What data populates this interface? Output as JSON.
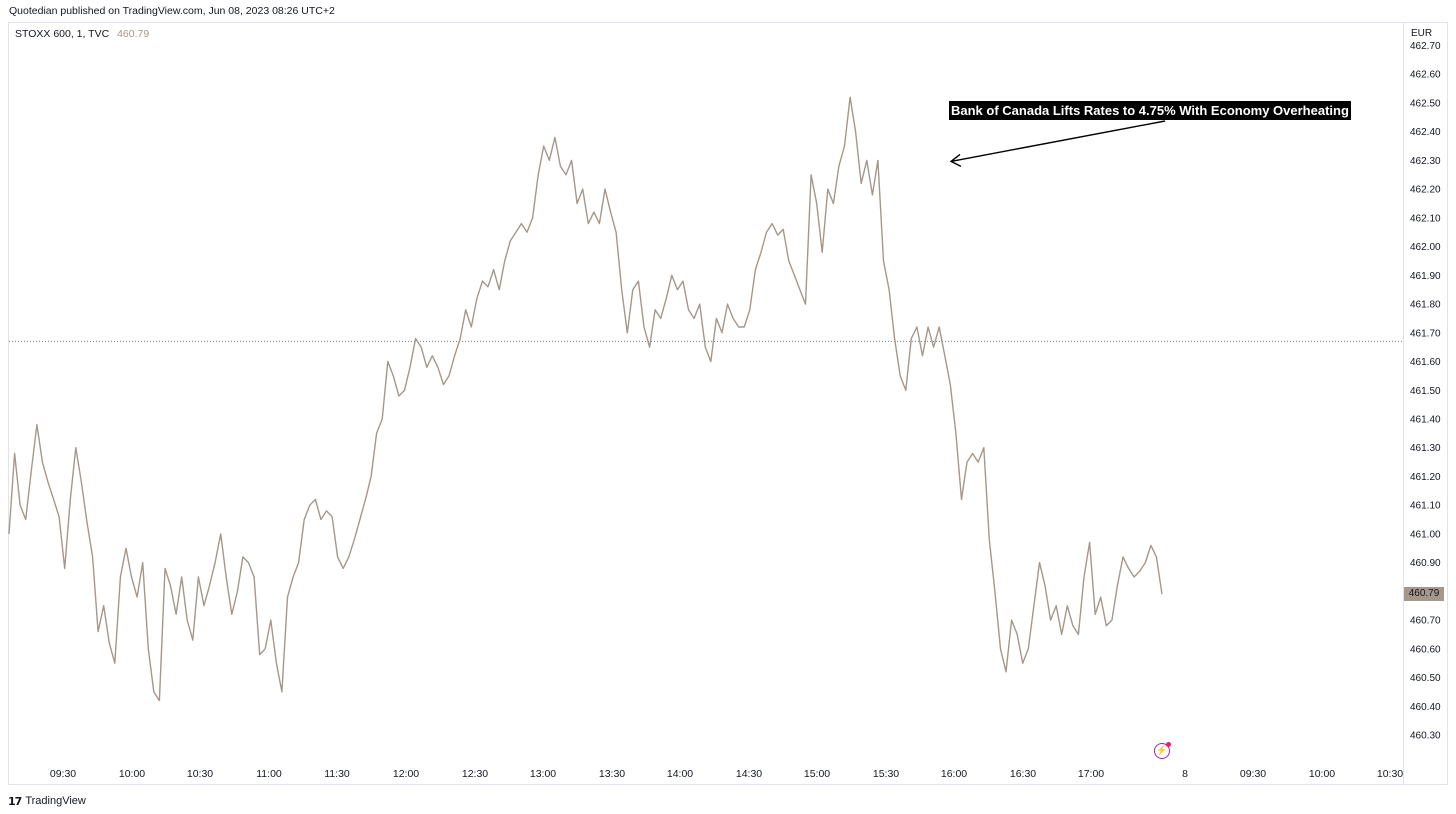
{
  "header": {
    "published": "Quotedian published on TradingView.com, Jun 08, 2023 08:26 UTC+2"
  },
  "legend": {
    "symbol": "STOXX 600, 1, TVC",
    "last_value": "460.79"
  },
  "price_scale": {
    "currency": "EUR",
    "last_price_label": "460.79"
  },
  "annotation": {
    "text": "Bank of Canada Lifts Rates to 4.75% With Economy Overheating",
    "points_to": {
      "time": "15:58",
      "price": 462.3
    }
  },
  "footer": {
    "logo": "17",
    "brand": "TradingView"
  },
  "icons": [
    "lightning-icon",
    "tradingview-logo-icon"
  ],
  "colors": {
    "line": "#a5978a",
    "grid": "#e0e3eb",
    "annotation_bg": "#000000",
    "flash_icon": "#9c27b0"
  },
  "chart_data": {
    "type": "line",
    "series": [
      {
        "values": [
          [
            0,
            461.0
          ],
          [
            1,
            461.28
          ],
          [
            2,
            461.1
          ],
          [
            3,
            461.05
          ],
          [
            4,
            461.22
          ],
          [
            5,
            461.38
          ],
          [
            6,
            461.25
          ],
          [
            7,
            461.18
          ],
          [
            8,
            461.12
          ],
          [
            9,
            461.06
          ],
          [
            10,
            460.88
          ],
          [
            11,
            461.12
          ],
          [
            12,
            461.3
          ],
          [
            13,
            461.18
          ],
          [
            14,
            461.04
          ],
          [
            15,
            460.92
          ],
          [
            16,
            460.66
          ],
          [
            17,
            460.75
          ],
          [
            18,
            460.62
          ],
          [
            19,
            460.55
          ],
          [
            20,
            460.85
          ],
          [
            21,
            460.95
          ],
          [
            22,
            460.85
          ],
          [
            23,
            460.78
          ],
          [
            24,
            460.9
          ],
          [
            25,
            460.6
          ],
          [
            26,
            460.45
          ],
          [
            27,
            460.42
          ],
          [
            28,
            460.88
          ],
          [
            29,
            460.82
          ],
          [
            30,
            460.72
          ],
          [
            31,
            460.85
          ],
          [
            32,
            460.7
          ],
          [
            33,
            460.63
          ],
          [
            34,
            460.85
          ],
          [
            35,
            460.75
          ],
          [
            36,
            460.82
          ],
          [
            37,
            460.9
          ],
          [
            38,
            461.0
          ],
          [
            39,
            460.85
          ],
          [
            40,
            460.72
          ],
          [
            41,
            460.8
          ],
          [
            42,
            460.92
          ],
          [
            43,
            460.9
          ],
          [
            44,
            460.85
          ],
          [
            45,
            460.58
          ],
          [
            46,
            460.6
          ],
          [
            47,
            460.7
          ],
          [
            48,
            460.55
          ],
          [
            49,
            460.45
          ],
          [
            50,
            460.78
          ],
          [
            51,
            460.85
          ],
          [
            52,
            460.9
          ],
          [
            53,
            461.05
          ],
          [
            54,
            461.1
          ],
          [
            55,
            461.12
          ],
          [
            56,
            461.05
          ],
          [
            57,
            461.08
          ],
          [
            58,
            461.06
          ],
          [
            59,
            460.92
          ],
          [
            60,
            460.88
          ],
          [
            61,
            460.92
          ],
          [
            62,
            460.98
          ],
          [
            63,
            461.05
          ],
          [
            64,
            461.12
          ],
          [
            65,
            461.2
          ],
          [
            66,
            461.35
          ],
          [
            67,
            461.4
          ],
          [
            68,
            461.6
          ],
          [
            69,
            461.55
          ],
          [
            70,
            461.48
          ],
          [
            71,
            461.5
          ],
          [
            72,
            461.58
          ],
          [
            73,
            461.68
          ],
          [
            74,
            461.65
          ],
          [
            75,
            461.58
          ],
          [
            76,
            461.62
          ],
          [
            77,
            461.58
          ],
          [
            78,
            461.52
          ],
          [
            79,
            461.55
          ],
          [
            80,
            461.62
          ],
          [
            81,
            461.68
          ],
          [
            82,
            461.78
          ],
          [
            83,
            461.72
          ],
          [
            84,
            461.82
          ],
          [
            85,
            461.88
          ],
          [
            86,
            461.86
          ],
          [
            87,
            461.92
          ],
          [
            88,
            461.85
          ],
          [
            89,
            461.95
          ],
          [
            90,
            462.02
          ],
          [
            91,
            462.05
          ],
          [
            92,
            462.08
          ],
          [
            93,
            462.05
          ],
          [
            94,
            462.1
          ],
          [
            95,
            462.25
          ],
          [
            96,
            462.35
          ],
          [
            97,
            462.3
          ],
          [
            98,
            462.38
          ],
          [
            99,
            462.28
          ],
          [
            100,
            462.25
          ],
          [
            101,
            462.3
          ],
          [
            102,
            462.15
          ],
          [
            103,
            462.2
          ],
          [
            104,
            462.08
          ],
          [
            105,
            462.12
          ],
          [
            106,
            462.08
          ],
          [
            107,
            462.2
          ],
          [
            108,
            462.12
          ],
          [
            109,
            462.05
          ],
          [
            110,
            461.85
          ],
          [
            111,
            461.7
          ],
          [
            112,
            461.85
          ],
          [
            113,
            461.88
          ],
          [
            114,
            461.72
          ],
          [
            115,
            461.65
          ],
          [
            116,
            461.78
          ],
          [
            117,
            461.75
          ],
          [
            118,
            461.82
          ],
          [
            119,
            461.9
          ],
          [
            120,
            461.85
          ],
          [
            121,
            461.88
          ],
          [
            122,
            461.78
          ],
          [
            123,
            461.75
          ],
          [
            124,
            461.8
          ],
          [
            125,
            461.65
          ],
          [
            126,
            461.6
          ],
          [
            127,
            461.75
          ],
          [
            128,
            461.7
          ],
          [
            129,
            461.8
          ],
          [
            130,
            461.75
          ],
          [
            131,
            461.72
          ],
          [
            132,
            461.72
          ],
          [
            133,
            461.78
          ],
          [
            134,
            461.92
          ],
          [
            135,
            461.98
          ],
          [
            136,
            462.05
          ],
          [
            137,
            462.08
          ],
          [
            138,
            462.04
          ],
          [
            139,
            462.06
          ],
          [
            140,
            461.95
          ],
          [
            141,
            461.9
          ],
          [
            142,
            461.85
          ],
          [
            143,
            461.8
          ],
          [
            144,
            462.25
          ],
          [
            145,
            462.15
          ],
          [
            146,
            461.98
          ],
          [
            147,
            462.2
          ],
          [
            148,
            462.15
          ],
          [
            149,
            462.28
          ],
          [
            150,
            462.35
          ],
          [
            151,
            462.52
          ],
          [
            152,
            462.4
          ],
          [
            153,
            462.22
          ],
          [
            154,
            462.3
          ],
          [
            155,
            462.18
          ],
          [
            156,
            462.3
          ],
          [
            157,
            461.95
          ],
          [
            158,
            461.85
          ],
          [
            159,
            461.68
          ],
          [
            160,
            461.55
          ],
          [
            161,
            461.5
          ],
          [
            162,
            461.68
          ],
          [
            163,
            461.72
          ],
          [
            164,
            461.62
          ],
          [
            165,
            461.72
          ],
          [
            166,
            461.65
          ],
          [
            167,
            461.72
          ],
          [
            168,
            461.62
          ],
          [
            169,
            461.52
          ],
          [
            170,
            461.35
          ],
          [
            171,
            461.12
          ],
          [
            172,
            461.25
          ],
          [
            173,
            461.28
          ],
          [
            174,
            461.25
          ],
          [
            175,
            461.3
          ],
          [
            176,
            460.98
          ],
          [
            177,
            460.8
          ],
          [
            178,
            460.6
          ],
          [
            179,
            460.52
          ],
          [
            180,
            460.7
          ],
          [
            181,
            460.65
          ],
          [
            182,
            460.55
          ],
          [
            183,
            460.6
          ],
          [
            184,
            460.75
          ],
          [
            185,
            460.9
          ],
          [
            186,
            460.82
          ],
          [
            187,
            460.7
          ],
          [
            188,
            460.75
          ],
          [
            189,
            460.65
          ],
          [
            190,
            460.75
          ],
          [
            191,
            460.68
          ],
          [
            192,
            460.65
          ],
          [
            193,
            460.85
          ],
          [
            194,
            460.97
          ],
          [
            195,
            460.72
          ],
          [
            196,
            460.78
          ],
          [
            197,
            460.68
          ],
          [
            198,
            460.7
          ],
          [
            199,
            460.82
          ],
          [
            200,
            460.92
          ],
          [
            201,
            460.88
          ],
          [
            202,
            460.85
          ],
          [
            203,
            460.87
          ],
          [
            204,
            460.9
          ],
          [
            205,
            460.96
          ],
          [
            206,
            460.92
          ],
          [
            207,
            460.79
          ]
        ]
      }
    ],
    "x_ticks": [
      "09:30",
      "10:00",
      "10:30",
      "11:00",
      "11:30",
      "12:00",
      "12:30",
      "13:00",
      "13:30",
      "14:00",
      "14:30",
      "15:00",
      "15:30",
      "16:00",
      "16:30",
      "17:00",
      "8",
      "09:30",
      "10:00",
      "10:30"
    ],
    "y_ticks": [
      462.7,
      462.6,
      462.5,
      462.4,
      462.3,
      462.2,
      462.1,
      462.0,
      461.9,
      461.8,
      461.7,
      461.6,
      461.5,
      461.4,
      461.3,
      461.2,
      461.1,
      461.0,
      460.9,
      460.8,
      460.7,
      460.6,
      460.5,
      460.4,
      460.3
    ],
    "y_tick_labels": [
      "462.70",
      "462.60",
      "462.50",
      "462.40",
      "462.30",
      "462.20",
      "462.10",
      "462.00",
      "461.90",
      "461.80",
      "461.70",
      "461.60",
      "461.50",
      "461.40",
      "461.30",
      "461.20",
      "461.10",
      "461.00",
      "460.90",
      "460.80",
      "460.70",
      "460.60",
      "460.50",
      "460.40",
      "460.30"
    ],
    "ylim": [
      460.25,
      462.74
    ],
    "reference_line": 461.67,
    "grid": false,
    "legend": "top-left"
  }
}
